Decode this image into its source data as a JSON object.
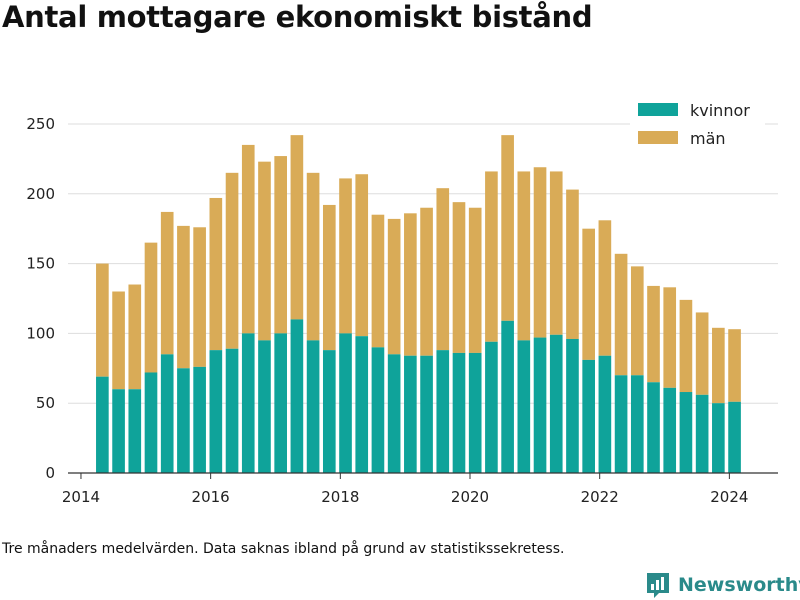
{
  "title": "Antal mottagare ekonomiskt bistånd",
  "footnote": "Tre månaders medelvärden. Data saknas ibland på grund av statistikssekretess.",
  "brand": {
    "name": "Newsworthy",
    "icon": "newsworthy-logo-icon",
    "color": "#2a8a8a"
  },
  "colors": {
    "kvinnor": "#0fa39a",
    "man": "#d9ab57",
    "grid": "#dddddd",
    "axis": "#333333"
  },
  "chart_data": {
    "type": "bar",
    "stacked": true,
    "title": "Antal mottagare ekonomiskt bistånd",
    "xlabel": "",
    "ylabel": "",
    "x_ticks": [
      "2014",
      "2016",
      "2018",
      "2020",
      "2022",
      "2024"
    ],
    "y_ticks": [
      "0",
      "50",
      "100",
      "150",
      "200",
      "250"
    ],
    "xlim": [
      2013.8,
      2024.75
    ],
    "ylim": [
      0,
      260
    ],
    "grid": true,
    "legend_position": "top-right",
    "x": [
      2014.33,
      2014.58,
      2014.83,
      2015.08,
      2015.33,
      2015.58,
      2015.83,
      2016.08,
      2016.33,
      2016.58,
      2016.83,
      2017.08,
      2017.33,
      2017.58,
      2017.83,
      2018.08,
      2018.33,
      2018.58,
      2018.83,
      2019.08,
      2019.33,
      2019.58,
      2019.83,
      2020.08,
      2020.33,
      2020.58,
      2020.83,
      2021.08,
      2021.33,
      2021.58,
      2021.83,
      2022.08,
      2022.33,
      2022.58,
      2022.83,
      2023.08,
      2023.33,
      2023.58,
      2023.83,
      2024.08
    ],
    "series": [
      {
        "name": "kvinnor",
        "color": "#0fa39a",
        "values": [
          69,
          60,
          60,
          72,
          85,
          75,
          76,
          88,
          89,
          100,
          95,
          100,
          110,
          95,
          88,
          100,
          98,
          90,
          85,
          84,
          84,
          88,
          86,
          86,
          94,
          109,
          95,
          97,
          99,
          96,
          81,
          84,
          70,
          70,
          65,
          61,
          58,
          56,
          50,
          51
        ]
      },
      {
        "name": "män",
        "color": "#d9ab57",
        "values": [
          81,
          70,
          75,
          93,
          102,
          102,
          100,
          109,
          126,
          135,
          128,
          127,
          132,
          120,
          104,
          111,
          116,
          95,
          97,
          102,
          106,
          116,
          108,
          104,
          122,
          133,
          121,
          122,
          117,
          107,
          94,
          97,
          87,
          78,
          69,
          72,
          66,
          59,
          54,
          52
        ]
      }
    ]
  }
}
